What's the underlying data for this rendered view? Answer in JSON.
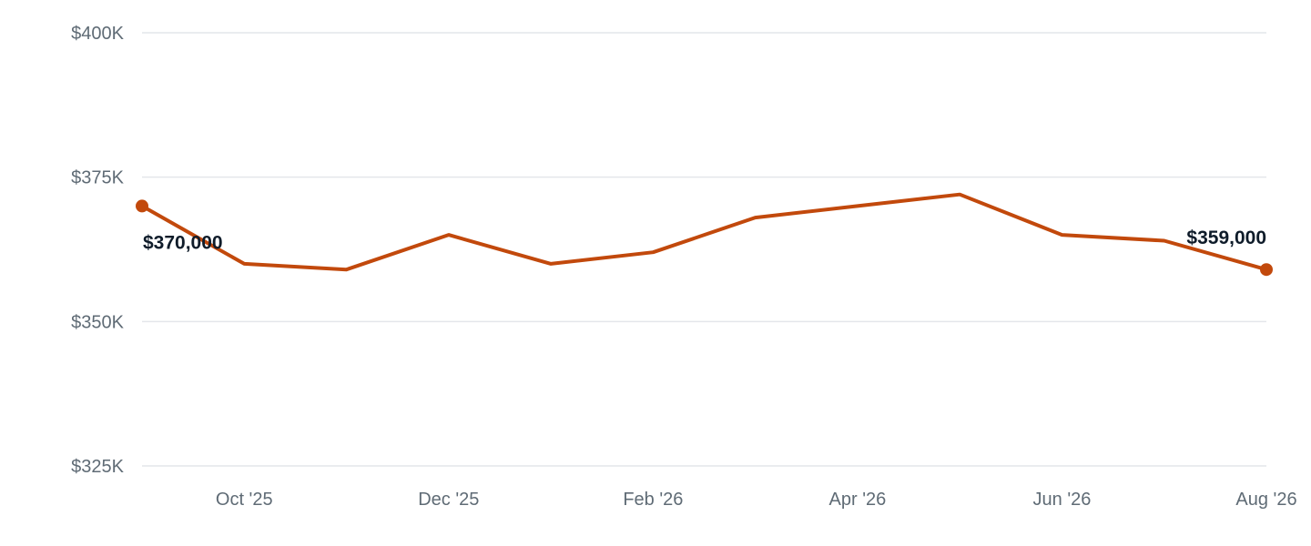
{
  "colors": {
    "series": "#c2490c",
    "grid": "#e4e6ea",
    "tick_text": "#5f6b75",
    "label_text": "#0f1c2a"
  },
  "chart_data": {
    "type": "line",
    "title": "",
    "xlabel": "",
    "ylabel": "",
    "x": [
      "2025-09",
      "2025-10",
      "2025-11",
      "2025-12",
      "2026-01",
      "2026-02",
      "2026-03",
      "2026-04",
      "2026-05",
      "2026-06",
      "2026-07",
      "2026-08"
    ],
    "series": [
      {
        "values": [
          370000,
          360000,
          359000,
          365000,
          360000,
          362000,
          368000,
          370000,
          372000,
          365000,
          364000,
          359000
        ]
      }
    ],
    "ylim": [
      325000,
      400000
    ],
    "y_ticks": [
      {
        "value": 400000,
        "label": "$400K"
      },
      {
        "value": 375000,
        "label": "$375K"
      },
      {
        "value": 350000,
        "label": "$350K"
      },
      {
        "value": 325000,
        "label": "$325K"
      }
    ],
    "x_ticks": [
      {
        "x": "2025-10",
        "label": "Oct '25"
      },
      {
        "x": "2025-12",
        "label": "Dec '25"
      },
      {
        "x": "2026-02",
        "label": "Feb '26"
      },
      {
        "x": "2026-04",
        "label": "Apr '26"
      },
      {
        "x": "2026-06",
        "label": "Jun '26"
      },
      {
        "x": "2026-08",
        "label": "Aug '26"
      }
    ],
    "data_labels": [
      {
        "x": "2025-09",
        "text": "$370,000"
      },
      {
        "x": "2026-08",
        "text": "$359,000"
      }
    ],
    "grid": "horizontal",
    "legend": "none"
  }
}
